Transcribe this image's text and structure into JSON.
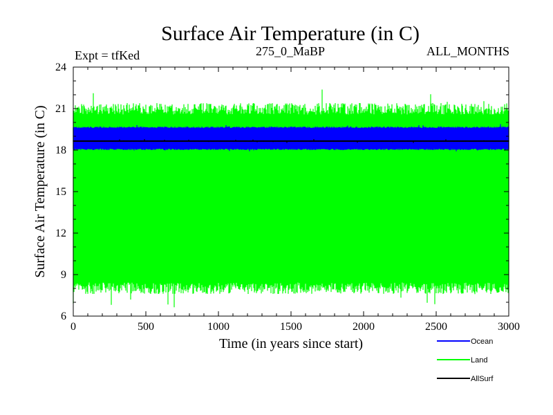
{
  "chart_data": {
    "type": "line",
    "title": "Surface Air Temperature (in C)",
    "subtitle_left": "Expt = tfKed",
    "subtitle_center": "275_0_MaBP",
    "subtitle_right": "ALL_MONTHS",
    "xlabel": "Time (in years since start)",
    "ylabel": "Surface Air Temperature (in C)",
    "xlim": [
      0,
      3000
    ],
    "ylim": [
      6,
      24
    ],
    "xticks": [
      "0",
      "500",
      "1000",
      "1500",
      "2000",
      "2500",
      "3000"
    ],
    "yticks": [
      "6",
      "9",
      "12",
      "15",
      "18",
      "21",
      "24"
    ],
    "legend_placement": "bottom-right, below plot",
    "series": [
      {
        "name": "Ocean",
        "color": "#0000ff",
        "band_low": 18.0,
        "band_high": 19.7,
        "spike_max": 19.9,
        "spike_min": 17.9
      },
      {
        "name": "Land",
        "color": "#00ff00",
        "band_low": 7.6,
        "band_high": 21.4,
        "spike_max": 22.6,
        "spike_min": 6.6
      },
      {
        "name": "AllSurf",
        "color": "#000000",
        "band_low": 18.6,
        "band_high": 18.7,
        "spike_max": 18.8,
        "spike_min": 18.5
      }
    ]
  }
}
